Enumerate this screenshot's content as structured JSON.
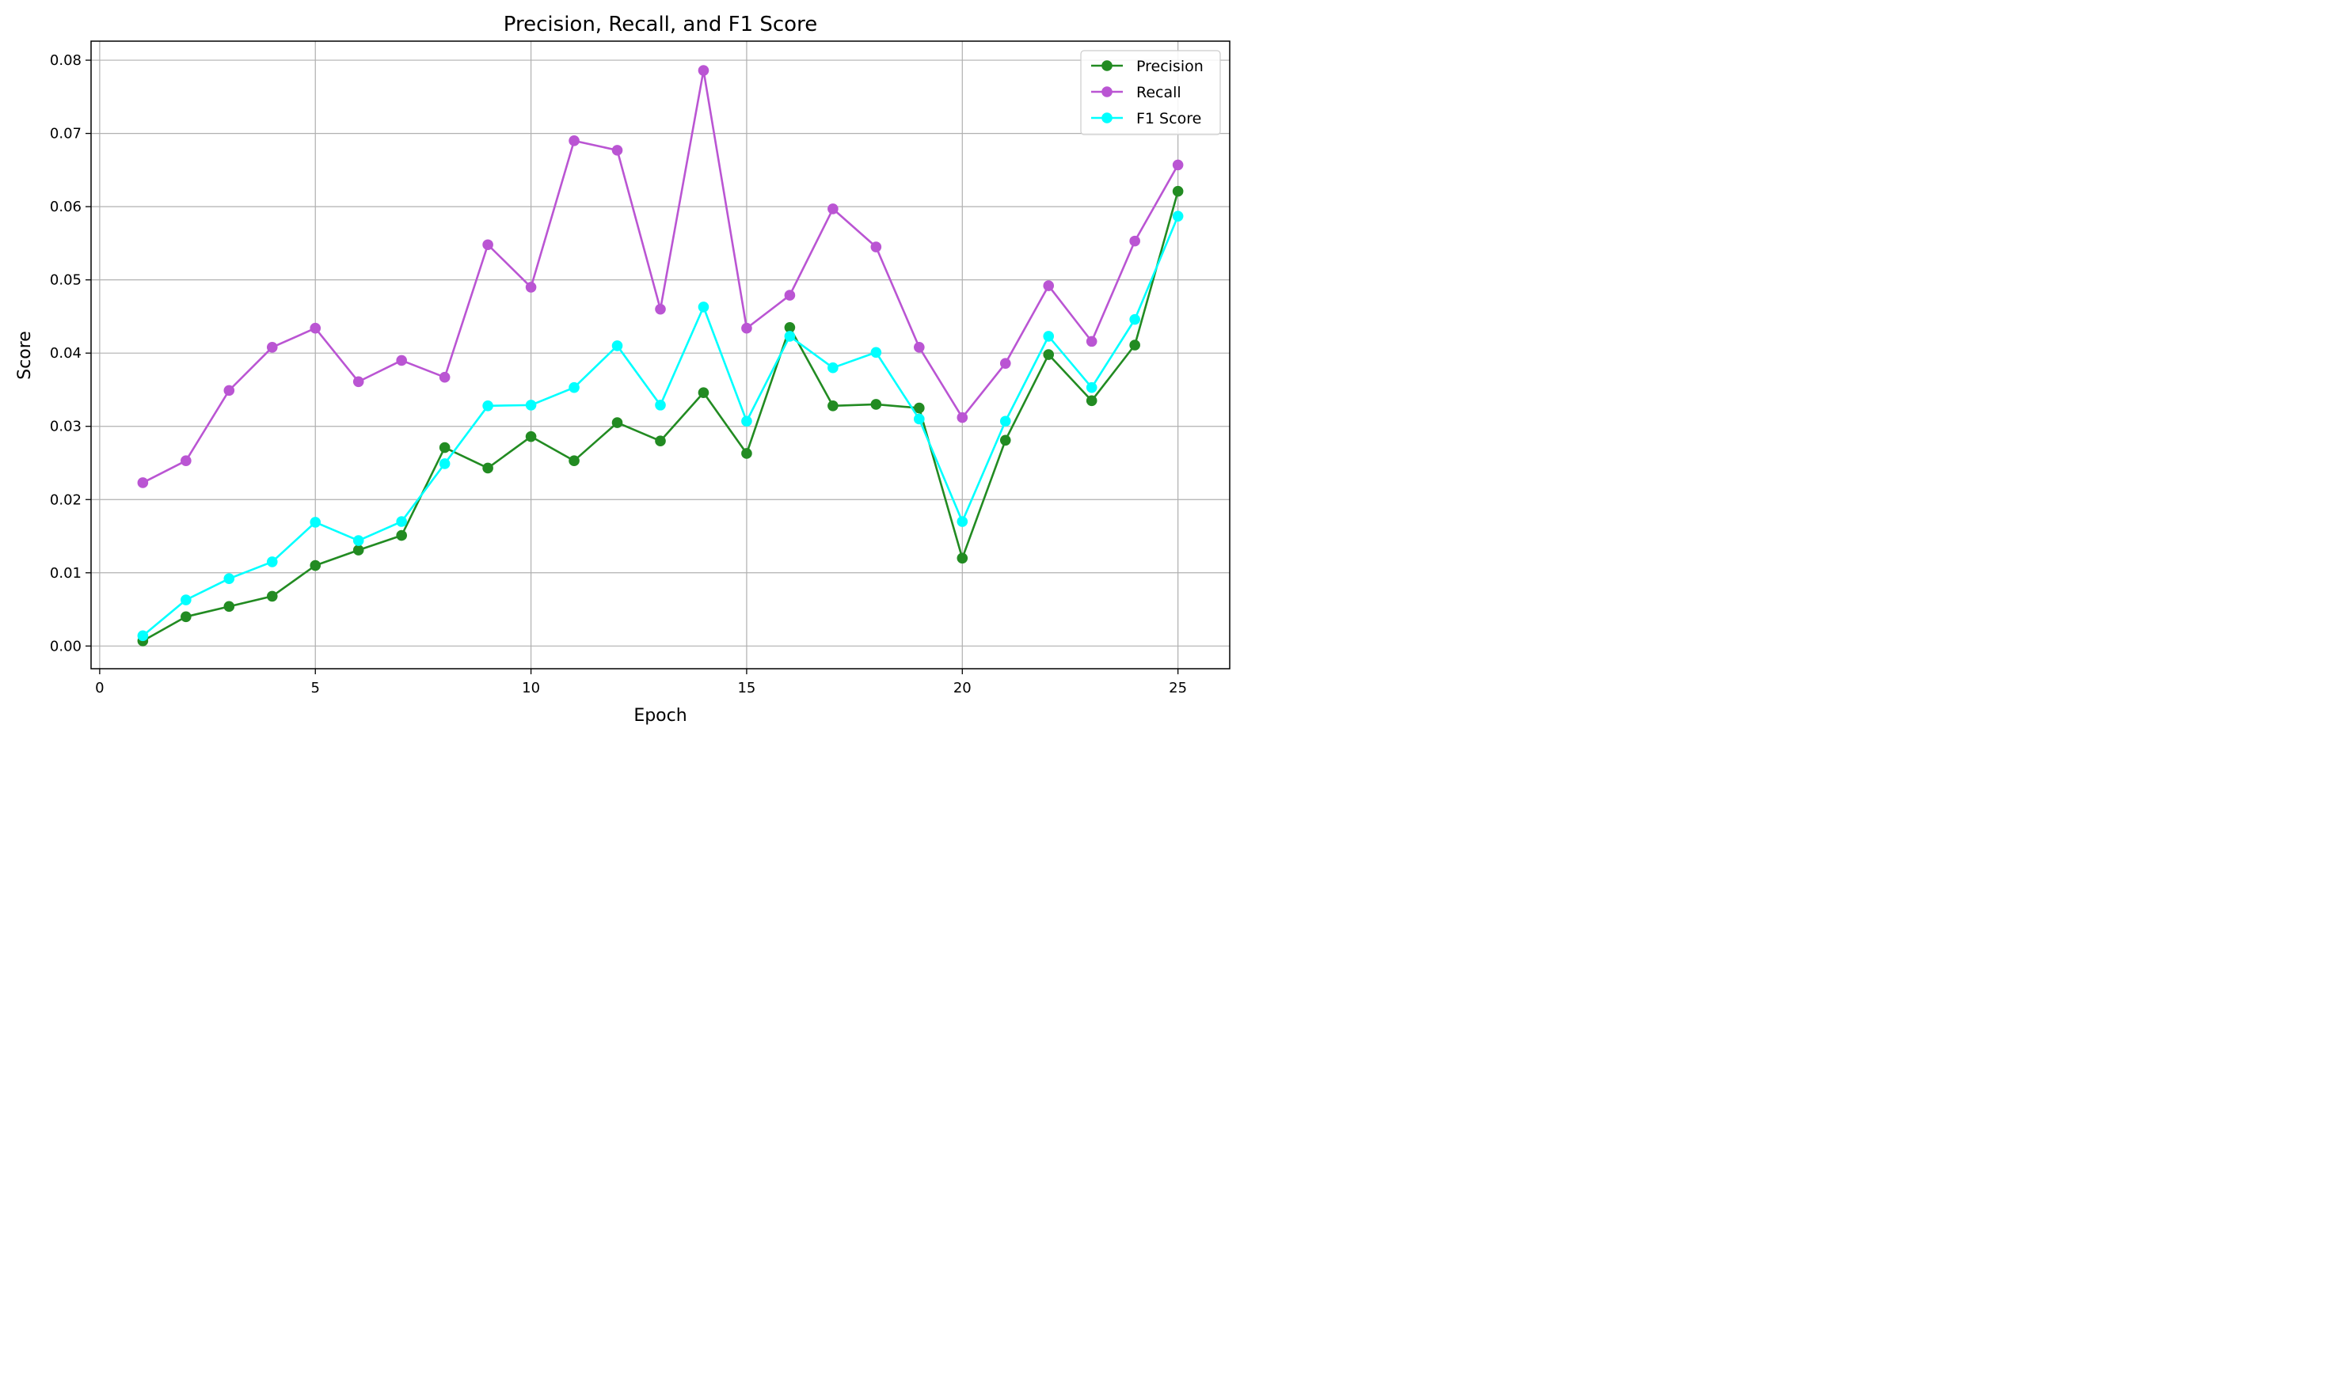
{
  "chart_data": {
    "type": "line",
    "title": "Precision, Recall, and F1 Score",
    "xlabel": "Epoch",
    "ylabel": "Score",
    "xlim": [
      -0.2,
      26.2
    ],
    "ylim": [
      -0.0031,
      0.0826
    ],
    "xticks": [
      0,
      5,
      10,
      15,
      20,
      25
    ],
    "xtick_labels": [
      "0",
      "5",
      "10",
      "15",
      "20",
      "25"
    ],
    "yticks": [
      0.0,
      0.01,
      0.02,
      0.03,
      0.04,
      0.05,
      0.06,
      0.07,
      0.08
    ],
    "ytick_labels": [
      "0.00",
      "0.01",
      "0.02",
      "0.03",
      "0.04",
      "0.05",
      "0.06",
      "0.07",
      "0.08"
    ],
    "grid": true,
    "legend_position": "top-right",
    "x": [
      1,
      2,
      3,
      4,
      5,
      6,
      7,
      8,
      9,
      10,
      11,
      12,
      13,
      14,
      15,
      16,
      17,
      18,
      19,
      20,
      21,
      22,
      23,
      24,
      25
    ],
    "series": [
      {
        "name": "Precision",
        "color": "#228b22",
        "values": [
          0.0007,
          0.004,
          0.0054,
          0.0068,
          0.011,
          0.0131,
          0.0151,
          0.0271,
          0.0243,
          0.0286,
          0.0253,
          0.0305,
          0.028,
          0.0346,
          0.0263,
          0.0435,
          0.0328,
          0.033,
          0.0325,
          0.012,
          0.0281,
          0.0398,
          0.0335,
          0.0411,
          0.0621
        ]
      },
      {
        "name": "Recall",
        "color": "#ba55d3",
        "values": [
          0.0223,
          0.0253,
          0.0349,
          0.0408,
          0.0434,
          0.0361,
          0.039,
          0.0367,
          0.0548,
          0.049,
          0.069,
          0.0677,
          0.046,
          0.0786,
          0.0434,
          0.0479,
          0.0597,
          0.0545,
          0.0408,
          0.0312,
          0.0386,
          0.0492,
          0.0416,
          0.0553,
          0.0657
        ]
      },
      {
        "name": "F1 Score",
        "color": "#00ffff",
        "values": [
          0.0014,
          0.0063,
          0.0092,
          0.0115,
          0.0169,
          0.0144,
          0.017,
          0.0249,
          0.0328,
          0.0329,
          0.0353,
          0.041,
          0.0329,
          0.0463,
          0.0307,
          0.0423,
          0.038,
          0.0401,
          0.031,
          0.017,
          0.0307,
          0.0423,
          0.0353,
          0.0446,
          0.0587
        ]
      }
    ]
  }
}
